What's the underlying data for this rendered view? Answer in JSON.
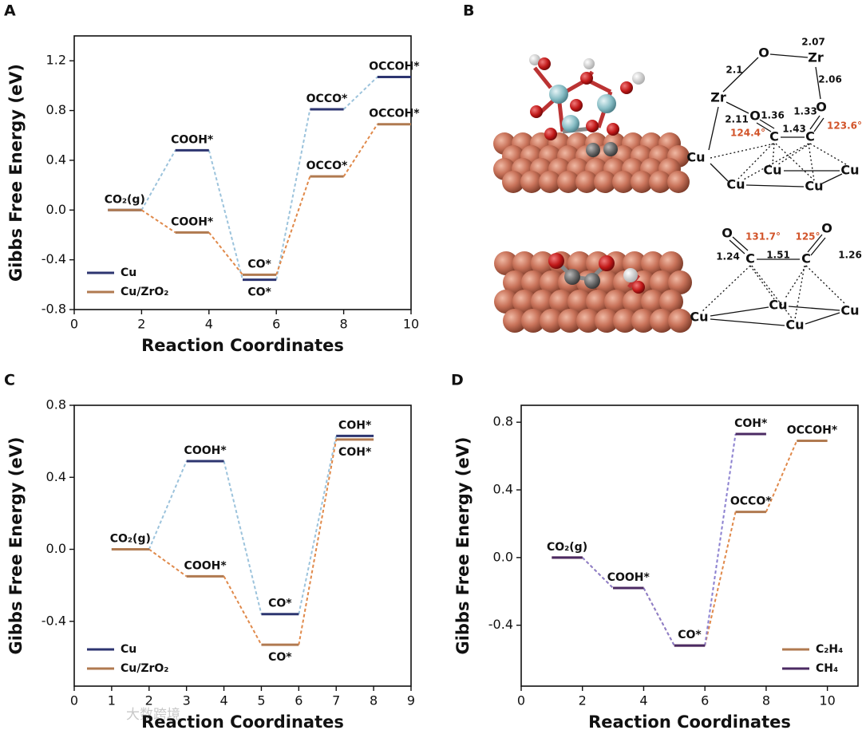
{
  "chart_data": [
    {
      "type": "step",
      "panel_label": "A",
      "x_label": "Reaction Coordinates",
      "y_label": "Gibbs Free Energy (eV)",
      "xlim": [
        0,
        10
      ],
      "xticks": [
        0,
        2,
        4,
        6,
        8,
        10
      ],
      "ylim": [
        -0.8,
        1.4
      ],
      "yticks": [
        -0.8,
        -0.4,
        {
          "value": 0,
          "label": "0.0"
        },
        0.4,
        0.8,
        1.2
      ],
      "legend": "lower left",
      "segments": [
        [
          1,
          2
        ],
        [
          3,
          4
        ],
        [
          5,
          6
        ],
        [
          7,
          8
        ],
        [
          9,
          10
        ]
      ],
      "series": [
        {
          "name": "Cu",
          "color": "#2d3570",
          "connector_color": "#9cc3dc",
          "values": [
            0,
            0.48,
            -0.56,
            0.81,
            1.07
          ],
          "labels": [
            null,
            "COOH*",
            "CO*",
            "OCCO*",
            "OCCOH*"
          ]
        },
        {
          "name": "Cu/ZrO₂",
          "color": "#b07a50",
          "connector_color": "#e0894a",
          "values": [
            0,
            -0.18,
            -0.52,
            0.27,
            0.69
          ],
          "labels": [
            "CO₂(g)",
            "COOH*",
            "CO*",
            "OCCO*",
            "OCCOH*"
          ]
        }
      ]
    },
    {
      "type": "step",
      "panel_label": "C",
      "x_label": "Reaction Coordinates",
      "y_label": "Gibbs Free Energy (eV)",
      "xlim": [
        0,
        9
      ],
      "xticks": [
        0,
        1,
        2,
        3,
        4,
        5,
        6,
        7,
        8,
        9
      ],
      "ylim": [
        -0.76,
        0.8
      ],
      "yticks": [
        -0.4,
        {
          "value": 0,
          "label": "0.0"
        },
        0.4,
        0.8
      ],
      "legend": "lower left",
      "segments": [
        [
          1,
          2
        ],
        [
          3,
          4
        ],
        [
          5,
          6
        ],
        [
          7,
          8
        ]
      ],
      "series": [
        {
          "name": "Cu",
          "color": "#2d3570",
          "connector_color": "#9cc3dc",
          "values": [
            0,
            0.49,
            -0.36,
            0.63
          ],
          "labels": [
            null,
            "COOH*",
            "CO*",
            "COH*"
          ]
        },
        {
          "name": "Cu/ZrO₂",
          "color": "#b07a50",
          "connector_color": "#e0894a",
          "values": [
            0,
            -0.15,
            -0.53,
            0.61
          ],
          "labels": [
            "CO₂(g)",
            "COOH*",
            "CO*",
            "COH*"
          ]
        }
      ]
    },
    {
      "type": "step",
      "panel_label": "D",
      "x_label": "Reaction Coordinates",
      "y_label": "Gibbs Free Energy (eV)",
      "xlim": [
        0,
        11
      ],
      "xticks": [
        0,
        2,
        4,
        6,
        8,
        10
      ],
      "ylim": [
        -0.76,
        0.9
      ],
      "yticks": [
        -0.4,
        {
          "value": 0,
          "label": "0.0"
        },
        0.4,
        0.8
      ],
      "legend": "lower right",
      "segments": [
        [
          1,
          2
        ],
        [
          3,
          4
        ],
        [
          5,
          6
        ],
        [
          7,
          8
        ],
        [
          9,
          10
        ]
      ],
      "series": [
        {
          "name": "C₂H₄",
          "color": "#b07a50",
          "connector_color": "#e0894a",
          "values": [
            0,
            -0.18,
            -0.52,
            0.27,
            0.69
          ],
          "labels": [
            null,
            null,
            null,
            "OCCO*",
            "OCCOH*"
          ]
        },
        {
          "name": "CH₄",
          "color": "#4b2a63",
          "connector_color": "#8a7fcf",
          "values": [
            0,
            -0.18,
            -0.52,
            0.73
          ],
          "labels": [
            "CO₂(g)",
            "COOH*",
            "CO*",
            "COH*"
          ]
        }
      ]
    }
  ],
  "panel_b": {
    "panel_label": "B",
    "top_labels": [
      "O",
      "2.07",
      "Zr",
      "2.1",
      "2.06",
      "Zr",
      "O",
      "1.36",
      "1.33",
      "O",
      "2.11",
      "124.4°",
      "1.43",
      "C",
      "C",
      "123.6°",
      "Cu",
      "Cu",
      "Cu",
      "Cu",
      "Cu"
    ],
    "bottom_labels": [
      "O",
      "131.7°",
      "125°",
      "O",
      "1.24",
      "1.51",
      "1.26",
      "C",
      "C",
      "Cu",
      "Cu",
      "Cu",
      "Cu"
    ]
  },
  "watermark": "大数跨境"
}
